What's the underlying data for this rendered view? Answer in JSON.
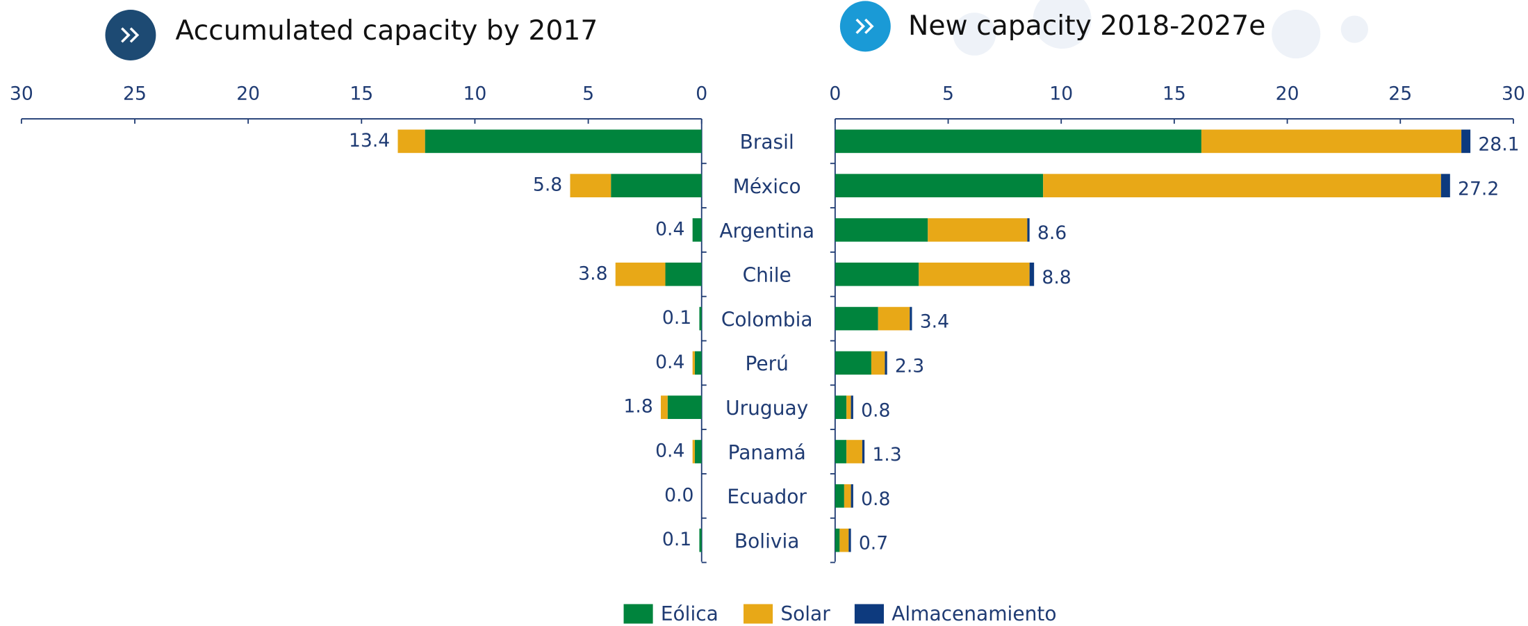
{
  "chart_data": [
    {
      "type": "hbar-stacked",
      "title": "Accumulated capacity by 2017",
      "categories": [
        "Brasil",
        "México",
        "Argentina",
        "Chile",
        "Colombia",
        "Perú",
        "Uruguay",
        "Panamá",
        "Ecuador",
        "Bolivia"
      ],
      "series": [
        {
          "color": "#00843d",
          "values": [
            12.2,
            4.0,
            0.4,
            1.6,
            0.1,
            0.3,
            1.5,
            0.3,
            0.0,
            0.1
          ]
        },
        {
          "color": "#e8a817",
          "values": [
            1.2,
            1.8,
            0.0,
            2.2,
            0.0,
            0.1,
            0.3,
            0.1,
            0.0,
            0.0
          ]
        }
      ],
      "totals": [
        13.4,
        5.8,
        0.4,
        3.8,
        0.1,
        0.4,
        1.8,
        0.4,
        0,
        0.1
      ],
      "total_labels": [
        "13.4",
        "5.8",
        "0.4",
        "3.8",
        "0.1",
        "0.4",
        "1.8",
        "0.4",
        "0.0",
        "0.1"
      ],
      "xlim": [
        30,
        0
      ],
      "xticks": [
        30,
        25,
        20,
        15,
        10,
        5,
        0
      ]
    },
    {
      "type": "hbar-stacked",
      "title": "New capacity 2018-2027e",
      "series": [
        {
          "name": "Eólica",
          "color": "#00843d",
          "values": [
            16.2,
            9.2,
            4.1,
            3.7,
            1.9,
            1.6,
            0.5,
            0.5,
            0.4,
            0.2
          ]
        },
        {
          "name": "Solar",
          "color": "#e8a817",
          "values": [
            11.5,
            17.6,
            4.4,
            4.9,
            1.4,
            0.6,
            0.2,
            0.7,
            0.3,
            0.4
          ]
        },
        {
          "name": "Almacenamiento",
          "color": "#0d3a7e",
          "values": [
            0.4,
            0.4,
            0.1,
            0.2,
            0.1,
            0.1,
            0.1,
            0.1,
            0.1,
            0.1
          ]
        }
      ],
      "totals": [
        28.1,
        27.2,
        8.6,
        8.8,
        3.4,
        2.3,
        0.8,
        1.3,
        0.8,
        0.7
      ],
      "xlim": [
        0,
        30
      ],
      "xticks": [
        0,
        5,
        10,
        15,
        20,
        25,
        30
      ]
    }
  ]
}
